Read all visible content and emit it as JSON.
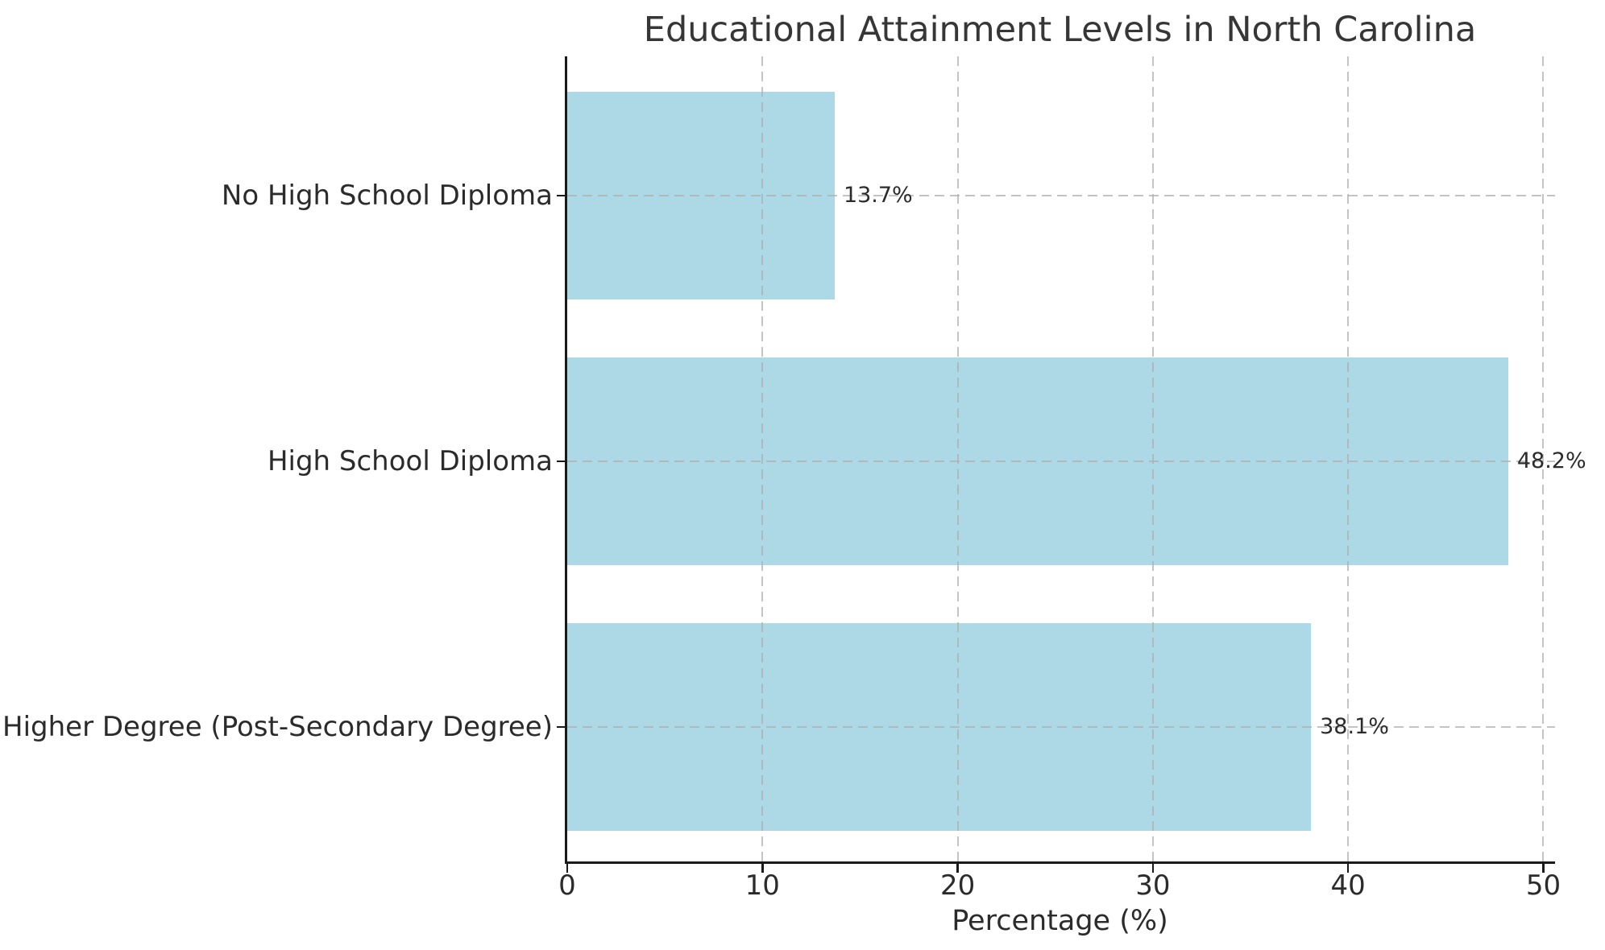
{
  "chart_data": {
    "type": "bar",
    "orientation": "horizontal",
    "title": "Educational Attainment Levels in North Carolina",
    "categories": [
      "No High School Diploma",
      "High School Diploma",
      "Higher Degree (Post-Secondary Degree)"
    ],
    "values": [
      13.7,
      48.2,
      38.1
    ],
    "value_labels": [
      "13.7%",
      "48.2%",
      "38.1%"
    ],
    "xlabel": "Percentage (%)",
    "ylabel": "",
    "xlim": [
      0,
      50.6
    ],
    "xticks": [
      0,
      10,
      20,
      30,
      40,
      50
    ],
    "xtick_labels": [
      "0",
      "10",
      "20",
      "30",
      "40",
      "50"
    ],
    "grid": true,
    "grid_style": "dashed",
    "grid_on_top_of_bars": true,
    "legend": "none",
    "bar_color": "#add8e6",
    "grid_color": "#b0b0b0",
    "spine_color": "#1a1a1a",
    "text_color": "#2b2b2b",
    "title_color": "#363636",
    "background_color": "#ffffff"
  }
}
